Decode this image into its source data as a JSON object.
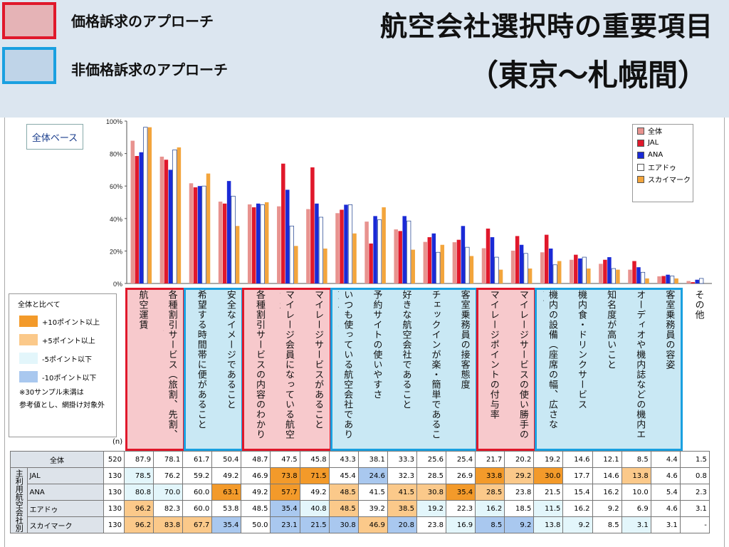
{
  "header": {
    "legend_price": "価格訴求のアプローチ",
    "legend_nonprice": "非価格訴求のアプローチ",
    "title_line1": "航空会社選択時の重要項目",
    "title_line2": "（東京～札幌間）"
  },
  "base_label": "全体ベース",
  "compare_legend": {
    "title": "全体と比べて",
    "items": [
      {
        "label": "+10ポイント以上",
        "color": "#f39a2a"
      },
      {
        "label": "+5ポイント以上",
        "color": "#fbc98a"
      },
      {
        "label": "-5ポイント以下",
        "color": "#e3f6fb"
      },
      {
        "label": "-10ポイント以下",
        "color": "#a9c8ef"
      }
    ],
    "note1": "※30サンプル未満は",
    "note2": "参考値とし、網掛け対象外"
  },
  "chart_data": {
    "type": "bar",
    "ylim": [
      0,
      100
    ],
    "yticks": [
      "0%",
      "20%",
      "40%",
      "60%",
      "80%",
      "100%"
    ],
    "series": [
      {
        "name": "全体",
        "color": "#e8938f",
        "values": [
          87.9,
          78.1,
          61.7,
          50.4,
          48.7,
          47.5,
          45.8,
          43.3,
          38.1,
          33.3,
          25.6,
          25.4,
          21.7,
          20.2,
          19.2,
          14.6,
          12.1,
          8.5,
          4.4,
          1.5
        ]
      },
      {
        "name": "JAL",
        "color": "#e0182b",
        "values": [
          78.5,
          76.2,
          59.2,
          49.2,
          46.9,
          73.8,
          71.5,
          45.4,
          24.6,
          32.3,
          28.5,
          26.9,
          33.8,
          29.2,
          30.0,
          17.7,
          14.6,
          13.8,
          4.6,
          0.8
        ]
      },
      {
        "name": "ANA",
        "color": "#1a2ad6",
        "values": [
          80.8,
          70.0,
          60.0,
          63.1,
          49.2,
          57.7,
          49.2,
          48.5,
          41.5,
          41.5,
          30.8,
          35.4,
          28.5,
          23.8,
          21.5,
          15.4,
          16.2,
          10.0,
          5.4,
          2.3
        ]
      },
      {
        "name": "エアドゥ",
        "color": "#ffffff",
        "values": [
          96.2,
          82.3,
          60.0,
          53.8,
          48.5,
          35.4,
          40.8,
          48.5,
          39.2,
          38.5,
          19.2,
          22.3,
          16.2,
          18.5,
          11.5,
          16.2,
          9.2,
          6.9,
          4.6,
          3.1
        ]
      },
      {
        "name": "スカイマーク",
        "color": "#f3a53c",
        "values": [
          96.2,
          83.8,
          67.7,
          35.4,
          50.0,
          23.1,
          21.5,
          30.8,
          46.9,
          20.8,
          23.8,
          16.9,
          8.5,
          9.2,
          13.8,
          9.2,
          8.5,
          3.1,
          3.1,
          null
        ]
      }
    ],
    "categories": [
      "航空運賃",
      "各種割引サービス（旅割、先割、前割など）の割引率",
      "希望する時間帯に便があること",
      "安全なイメージであること",
      "各種割引サービスの内容のわかりやすさ",
      "マイレージ会員になっている航空会社であること",
      "マイレージサービスがあること",
      "いつも使っている航空会社であり慣れていること",
      "予約サイトの使いやすさ",
      "好きな航空会社であること",
      "チェックインが楽・簡単であること",
      "客室乗務員の接客態度",
      "マイレージポイントの付与率",
      "マイレージサービスの使い勝手のよさ",
      "機内の設備（座席の幅、広さなど）",
      "機内食・ドリンクサービス",
      "知名度が高いこと",
      "オーディオや機内誌などの機内エンターテインメント",
      "客室乗務員の容姿",
      "その他"
    ],
    "groups": [
      {
        "type": "price",
        "start": 0,
        "end": 1
      },
      {
        "type": "nonprice",
        "start": 2,
        "end": 3
      },
      {
        "type": "price",
        "start": 4,
        "end": 6
      },
      {
        "type": "nonprice",
        "start": 7,
        "end": 11
      },
      {
        "type": "price",
        "start": 12,
        "end": 13
      },
      {
        "type": "nonprice",
        "start": 14,
        "end": 18
      }
    ]
  },
  "table": {
    "n_label": "(n)",
    "group_label": "主利用航空会社別",
    "rows": [
      {
        "label": "全体",
        "n": "520",
        "values": [
          "87.9",
          "78.1",
          "61.7",
          "50.4",
          "48.7",
          "47.5",
          "45.8",
          "43.3",
          "38.1",
          "33.3",
          "25.6",
          "25.4",
          "21.7",
          "20.2",
          "19.2",
          "14.6",
          "12.1",
          "8.5",
          "4.4",
          "1.5"
        ],
        "shade": []
      },
      {
        "label": "JAL",
        "n": "130",
        "values": [
          "78.5",
          "76.2",
          "59.2",
          "49.2",
          "46.9",
          "73.8",
          "71.5",
          "45.4",
          "24.6",
          "32.3",
          "28.5",
          "26.9",
          "33.8",
          "29.2",
          "30.0",
          "17.7",
          "14.6",
          "13.8",
          "4.6",
          "0.8"
        ],
        "shade": [
          "-5",
          "",
          "",
          "",
          "",
          "+10",
          "+10",
          "",
          "-10",
          "",
          "",
          "",
          "+10",
          "+5",
          "+10",
          "",
          "",
          "+5",
          "",
          ""
        ]
      },
      {
        "label": "ANA",
        "n": "130",
        "values": [
          "80.8",
          "70.0",
          "60.0",
          "63.1",
          "49.2",
          "57.7",
          "49.2",
          "48.5",
          "41.5",
          "41.5",
          "30.8",
          "35.4",
          "28.5",
          "23.8",
          "21.5",
          "15.4",
          "16.2",
          "10.0",
          "5.4",
          "2.3"
        ],
        "shade": [
          "-5",
          "-5",
          "",
          "+10",
          "",
          "+10",
          "",
          "+5",
          "",
          "+5",
          "+5",
          "+10",
          "+5",
          "",
          "",
          "",
          "",
          "",
          "",
          ""
        ]
      },
      {
        "label": "エアドゥ",
        "n": "130",
        "values": [
          "96.2",
          "82.3",
          "60.0",
          "53.8",
          "48.5",
          "35.4",
          "40.8",
          "48.5",
          "39.2",
          "38.5",
          "19.2",
          "22.3",
          "16.2",
          "18.5",
          "11.5",
          "16.2",
          "9.2",
          "6.9",
          "4.6",
          "3.1"
        ],
        "shade": [
          "+5",
          "",
          "",
          "",
          "",
          "-10",
          "-5",
          "+5",
          "",
          "+5",
          "-5",
          "",
          "-5",
          "",
          "-5",
          "",
          "",
          "",
          "",
          ""
        ]
      },
      {
        "label": "スカイマーク",
        "n": "130",
        "values": [
          "96.2",
          "83.8",
          "67.7",
          "35.4",
          "50.0",
          "23.1",
          "21.5",
          "30.8",
          "46.9",
          "20.8",
          "23.8",
          "16.9",
          "8.5",
          "9.2",
          "13.8",
          "9.2",
          "8.5",
          "3.1",
          "3.1",
          "-"
        ],
        "shade": [
          "+5",
          "+5",
          "+5",
          "-10",
          "",
          "-10",
          "-10",
          "-10",
          "+5",
          "-10",
          "",
          "-5",
          "-10",
          "-10",
          "-5",
          "-5",
          "",
          "-5",
          "",
          ""
        ]
      }
    ]
  }
}
